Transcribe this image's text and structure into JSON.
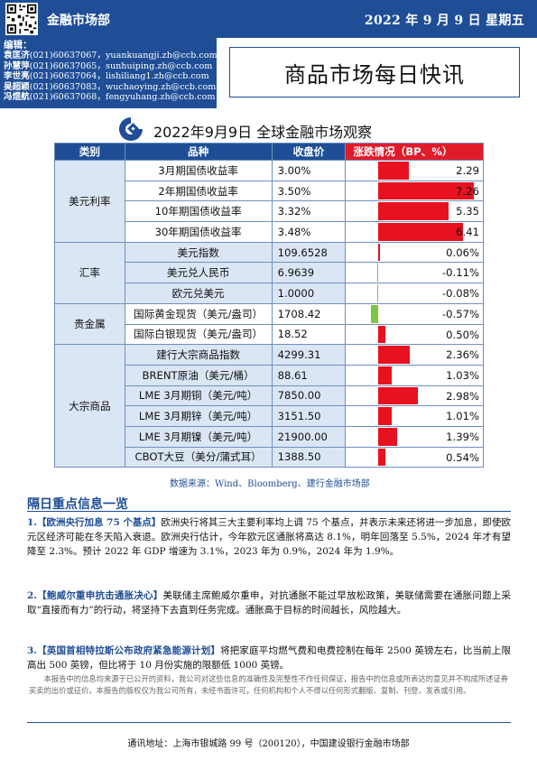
{
  "header": {
    "department": "金融市场部",
    "date": "2022 年 9 月 9 日  星期五"
  },
  "editors": {
    "label": "编辑：",
    "rows": [
      {
        "name": "袁匡济",
        "phone": "(021)60637067，",
        "email": "yuankuangji.zh@ccb.com"
      },
      {
        "name": "孙慧萍",
        "phone": "(021)60637065，",
        "email": "sunhuiping.zh@ccb.com"
      },
      {
        "name": "李世亮",
        "phone": "(021)60637064，",
        "email": "lishiliang1.zh@ccb.com"
      },
      {
        "name": "吴超颖",
        "phone": "(021)60637083，",
        "email": "wuchaoying.zh@ccb.com"
      },
      {
        "name": "冯煜航",
        "phone": "(021)60637068，",
        "email": "fengyuhang.zh@ccb.com"
      }
    ]
  },
  "title": "商品市场每日快讯",
  "report_title": "2022年9月9日 全球金融市场观察",
  "table": {
    "headers": {
      "category": "类别",
      "name": "品种",
      "close": "收盘价",
      "change": "涨跌情况（BP、%）"
    },
    "colors": {
      "up": "#e8111f",
      "down": "#7cc642"
    },
    "categories": [
      {
        "label": "美元利率",
        "rows": 4
      },
      {
        "label": "汇率",
        "rows": 3
      },
      {
        "label": "贵金属",
        "rows": 2
      },
      {
        "label": "大宗商品",
        "rows": 6
      }
    ],
    "rows": [
      {
        "name": "3月期国债收益率",
        "close": "3.00%",
        "change": "2.29",
        "value": 2.29
      },
      {
        "name": "2年期国债收益率",
        "close": "3.50%",
        "change": "7.26",
        "value": 7.26
      },
      {
        "name": "10年期国债收益率",
        "close": "3.32%",
        "change": "5.35",
        "value": 5.35
      },
      {
        "name": "30年期国债收益率",
        "close": "3.48%",
        "change": "6.41",
        "value": 6.41
      },
      {
        "name": "美元指数",
        "close": "109.6528",
        "change": "0.06%",
        "value": 0.06
      },
      {
        "name": "美元兑人民币",
        "close": "6.9639",
        "change": "-0.11%",
        "value": -0.11
      },
      {
        "name": "欧元兑美元",
        "close": "1.0000",
        "change": "-0.08%",
        "value": -0.08
      },
      {
        "name": "国际黄金现货（美元/盎司）",
        "close": "1708.42",
        "change": "-0.57%",
        "value": -0.57
      },
      {
        "name": "国际白银现货（美元/盎司）",
        "close": "18.52",
        "change": "0.50%",
        "value": 0.5
      },
      {
        "name": "建行大宗商品指数",
        "close": "4299.31",
        "change": "2.36%",
        "value": 2.36
      },
      {
        "name": "BRENT原油（美元/桶）",
        "close": "88.61",
        "change": "1.03%",
        "value": 1.03
      },
      {
        "name": "LME 3月期铜（美元/吨）",
        "close": "7850.00",
        "change": "2.98%",
        "value": 2.98
      },
      {
        "name": "LME 3月期锌（美元/吨）",
        "close": "3151.50",
        "change": "1.01%",
        "value": 1.01
      },
      {
        "name": "LME 3月期镍（美元/吨）",
        "close": "21900.00",
        "change": "1.39%",
        "value": 1.39
      },
      {
        "name": "CBOT大豆（美分/蒲式耳）",
        "close": "1388.50",
        "change": "0.54%",
        "value": 0.54
      }
    ]
  },
  "source": "数据来源：Wind、Bloomberg、建行金融市场部",
  "news": {
    "heading": "隔日重点信息一览",
    "items": [
      {
        "num": "1.",
        "title": "【欧洲央行加息 75 个基点】",
        "body": "欧洲央行将其三大主要利率均上调 75 个基点，并表示未来还将进一步加息，即使欧元区经济可能在冬天陷入衰退。欧洲央行估计，今年欧元区通胀将高达 8.1%，明年回落至 5.5%，2024 年才有望降至 2.3%。预计 2022 年 GDP 增速为 3.1%，2023 年为 0.9%，2024 年为 1.9%。"
      },
      {
        "num": "2.",
        "title": "【鲍威尔重申抗击通胀决心】",
        "body": "美联储主席鲍威尔重申，对抗通胀不能过早放松政策，美联储需要在通胀问题上采取“直接而有力”的行动，将坚持下去直到任务完成。通胀高于目标的时间越长，风险越大。"
      },
      {
        "num": "3.",
        "title": "【英国首相特拉斯公布政府紧急能源计划】",
        "body": "将把家庭平均燃气费和电费控制在每年 2500 英镑左右，比当前上限高出 500 英镑，但比将于 10 月份实施的限额低 1000 英镑。"
      }
    ]
  },
  "disclaimer": "本报告中的信息均来源于已公开的资料，我公司对这些信息的准确性及完整性不作任何保证，报告中的信息或所表达的意见并不构成所述证券买卖的出价或征价。本报告的版权仅为我公司所有，未经书面许可，任何机构和个人不得以任何形式翻版、复制、刊登、发表或引用。",
  "footer": "通讯地址：上海市银城路 99 号（200120），中国建设银行金融市场部"
}
